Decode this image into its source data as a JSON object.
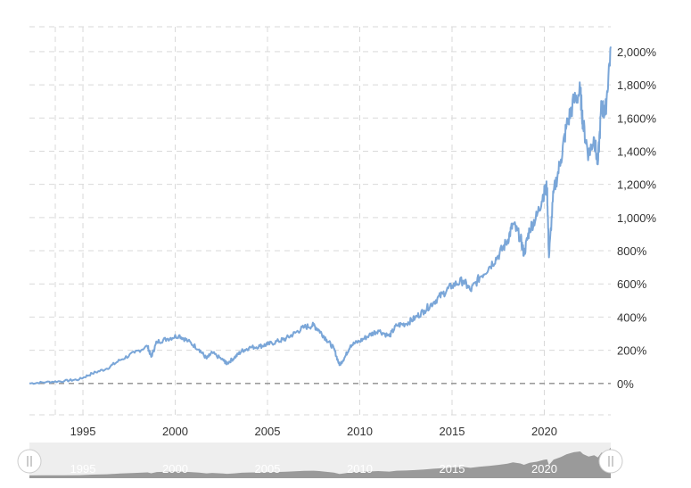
{
  "colors": {
    "line": "#7aa6d8",
    "grid": "#d9d9d9",
    "zero_line": "#8c8c8c",
    "navigator_bg": "#eeeeee",
    "navigator_area": "#9a9a9a"
  },
  "chart_data": {
    "type": "line",
    "title": "",
    "xlabel": "",
    "ylabel": "",
    "x_unit": "year",
    "y_unit": "percent",
    "xlim": [
      1992.1,
      2023.6
    ],
    "ylim": [
      -200,
      2150
    ],
    "y_ticks": [
      0,
      200,
      400,
      600,
      800,
      1000,
      1200,
      1400,
      1600,
      1800,
      2000
    ],
    "y_tick_labels": [
      "0%",
      "200%",
      "400%",
      "600%",
      "800%",
      "1,000%",
      "1,200%",
      "1,400%",
      "1,600%",
      "1,800%",
      "2,000%"
    ],
    "x_ticks": [
      1993.5,
      1995,
      2000,
      2005,
      2010,
      2015,
      2020
    ],
    "x_tick_labels": [
      "1995",
      "2000",
      "2005",
      "2010",
      "2015",
      "2020"
    ],
    "x_label_ticks": [
      1995,
      2000,
      2005,
      2010,
      2015,
      2020
    ],
    "grid": true,
    "series": [
      {
        "x": [
          1992.1,
          1993.0,
          1994.0,
          1994.8,
          1995.5,
          1996.3,
          1997.0,
          1997.8,
          1998.5,
          1998.7,
          1999.0,
          1999.6,
          2000.2,
          2000.7,
          2001.3,
          2001.7,
          2002.0,
          2002.6,
          2002.8,
          2003.2,
          2003.6,
          2004.0,
          2004.6,
          2005.0,
          2005.6,
          2006.0,
          2006.5,
          2007.0,
          2007.5,
          2007.8,
          2008.2,
          2008.6,
          2008.9,
          2009.2,
          2009.5,
          2010.0,
          2010.5,
          2011.0,
          2011.6,
          2012.0,
          2012.5,
          2013.0,
          2013.5,
          2014.0,
          2014.5,
          2015.0,
          2015.6,
          2016.0,
          2016.5,
          2017.0,
          2017.5,
          2018.0,
          2018.3,
          2018.7,
          2018.9,
          2019.2,
          2019.6,
          2019.95,
          2020.15,
          2020.25,
          2020.5,
          2020.9,
          2021.2,
          2021.6,
          2021.95,
          2022.1,
          2022.4,
          2022.7,
          2022.9,
          2023.1,
          2023.3,
          2023.6
        ],
        "values": [
          0,
          8,
          15,
          25,
          60,
          90,
          140,
          185,
          225,
          160,
          250,
          270,
          290,
          255,
          205,
          150,
          185,
          140,
          120,
          155,
          195,
          215,
          225,
          235,
          255,
          270,
          305,
          340,
          350,
          320,
          265,
          210,
          110,
          160,
          230,
          255,
          290,
          320,
          285,
          350,
          360,
          395,
          440,
          490,
          540,
          590,
          620,
          560,
          640,
          700,
          770,
          860,
          960,
          880,
          780,
          930,
          1010,
          1140,
          1180,
          760,
          1150,
          1350,
          1550,
          1700,
          1760,
          1560,
          1380,
          1480,
          1320,
          1680,
          1620,
          2030
        ]
      }
    ]
  },
  "navigator": {
    "labels": [
      "1995",
      "2000",
      "2005",
      "2010",
      "2015",
      "2020"
    ]
  }
}
